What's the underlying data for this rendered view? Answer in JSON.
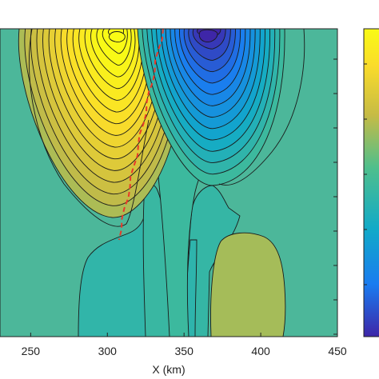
{
  "chart_data": {
    "type": "heatmap",
    "title": "",
    "xlabel": "X (km)",
    "ylabel": "",
    "x_ticks": [
      250,
      300,
      350,
      400,
      450
    ],
    "x_tick_labels": [
      "250",
      "300",
      "350",
      "400",
      "450"
    ],
    "xlim": [
      230,
      450
    ],
    "colormap": "parula",
    "colormap_colors": [
      "#3e26a8",
      "#1a7cf0",
      "#11aac8",
      "#4fbf8c",
      "#c6bb45",
      "#fadc2a",
      "#f9fb15"
    ],
    "background_color": "#4cb79a",
    "colorbar": true,
    "colorbar_placement": "right",
    "features": [
      {
        "name": "positive-maximum",
        "x": 298,
        "color": "#f9fb15"
      },
      {
        "name": "negative-minimum",
        "x": 360,
        "color": "#3e26a8"
      }
    ],
    "front_line": {
      "style": "dashed",
      "color": "#e83a2a",
      "x_top": 330,
      "x_bottom": 311
    }
  }
}
